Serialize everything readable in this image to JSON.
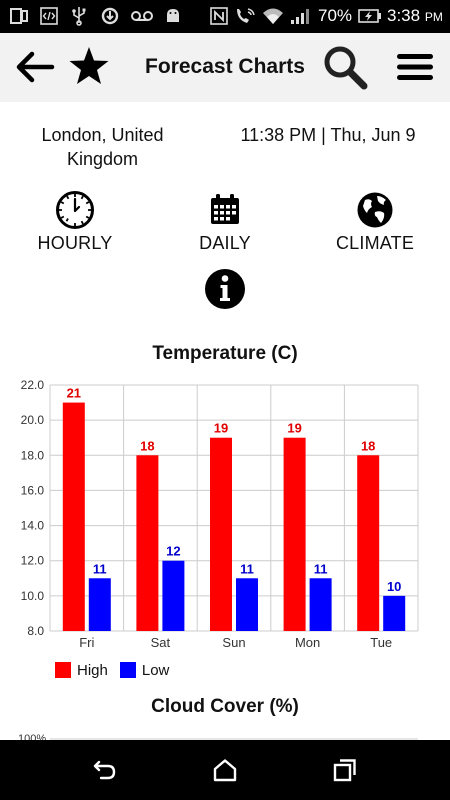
{
  "status_bar": {
    "battery_percent": "70%",
    "time": "3:38",
    "ampm": "PM",
    "icons": [
      "photo-gallery-icon",
      "code-icon",
      "usb-icon",
      "sync-icon",
      "voicemail-icon",
      "android-icon",
      "nfc-icon",
      "wifi-calling-icon",
      "wifi-icon",
      "signal-icon",
      "battery-charging-icon"
    ]
  },
  "app_bar": {
    "title": "Forecast Charts",
    "icons": [
      "back-arrow-icon",
      "star-icon",
      "search-icon",
      "menu-icon"
    ]
  },
  "location": {
    "name": "London, United Kingdom",
    "datetime": "11:38 PM | Thu, Jun 9"
  },
  "modes": [
    {
      "label": "HOURLY",
      "icon": "clock-icon"
    },
    {
      "label": "DAILY",
      "icon": "calendar-icon"
    },
    {
      "label": "CLIMATE",
      "icon": "globe-icon"
    }
  ],
  "info_icon": "info-icon",
  "colors": {
    "high": "#ff0000",
    "low": "#0000ff",
    "high_label": "#e00000",
    "low_label": "#0000cc",
    "grid": "#cccccc"
  },
  "chart_data": [
    {
      "type": "bar",
      "title": "Temperature (C)",
      "categories": [
        "Fri",
        "Sat",
        "Sun",
        "Mon",
        "Tue"
      ],
      "series": [
        {
          "name": "High",
          "values": [
            21,
            18,
            19,
            19,
            18
          ]
        },
        {
          "name": "Low",
          "values": [
            11,
            12,
            11,
            11,
            10
          ]
        }
      ],
      "ylim": [
        8.0,
        22.0
      ],
      "yticks": [
        "8.0",
        "10.0",
        "12.0",
        "14.0",
        "16.0",
        "18.0",
        "20.0",
        "22.0"
      ],
      "grid": true,
      "legend": "bottom-left"
    },
    {
      "type": "bar",
      "title": "Cloud Cover (%)",
      "yticks": [
        "100%"
      ]
    }
  ],
  "nav_bar": {
    "icons": [
      "back-icon",
      "home-icon",
      "recents-icon"
    ]
  }
}
